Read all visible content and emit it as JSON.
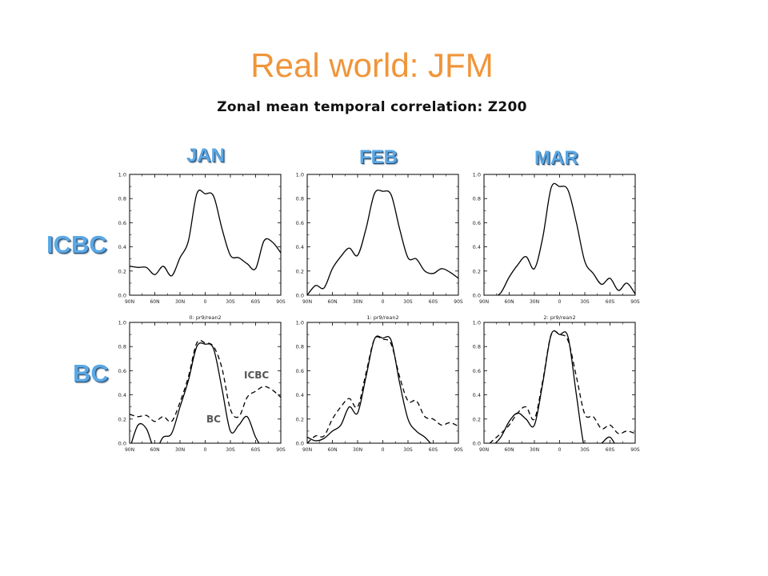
{
  "title": "Real world: JFM",
  "subtitle": "Zonal mean temporal correlation: Z200",
  "columns": [
    "JAN",
    "FEB",
    "MAR"
  ],
  "rows": [
    "ICBC",
    "BC"
  ],
  "annotations": {
    "icbc": "ICBC",
    "bc": "BC"
  },
  "colors": {
    "title": "#f0953a",
    "labels": "#5aa8e6",
    "line": "#000000"
  },
  "chart_data": {
    "type": "line",
    "x_ticks": [
      "90N",
      "60N",
      "30N",
      "0",
      "30S",
      "60S",
      "90S"
    ],
    "y_ticks": [
      "0.0",
      "0.2",
      "0.4",
      "0.6",
      "0.8",
      "1.0"
    ],
    "xlim": [
      -90,
      90
    ],
    "ylim": [
      0,
      1
    ],
    "x": [
      -90,
      -80,
      -70,
      -60,
      -50,
      -40,
      -30,
      -20,
      -10,
      0,
      10,
      20,
      30,
      40,
      50,
      60,
      70,
      80,
      90
    ],
    "panels": [
      {
        "row": "ICBC",
        "col": "JAN",
        "label": "",
        "series": [
          {
            "style": "solid",
            "values": [
              0.24,
              0.23,
              0.23,
              0.17,
              0.24,
              0.16,
              0.31,
              0.45,
              0.84,
              0.84,
              0.82,
              0.55,
              0.33,
              0.31,
              0.26,
              0.22,
              0.45,
              0.44,
              0.35
            ]
          }
        ]
      },
      {
        "row": "ICBC",
        "col": "FEB",
        "label": "",
        "series": [
          {
            "style": "solid",
            "values": [
              0.0,
              0.08,
              0.06,
              0.22,
              0.32,
              0.39,
              0.33,
              0.55,
              0.84,
              0.86,
              0.83,
              0.55,
              0.31,
              0.3,
              0.2,
              0.18,
              0.22,
              0.19,
              0.14
            ]
          }
        ]
      },
      {
        "row": "ICBC",
        "col": "MAR",
        "label": "",
        "series": [
          {
            "style": "solid",
            "values": [
              -0.05,
              -0.02,
              0.02,
              0.15,
              0.25,
              0.32,
              0.22,
              0.48,
              0.89,
              0.9,
              0.87,
              0.6,
              0.28,
              0.18,
              0.09,
              0.14,
              0.04,
              0.1,
              0.01
            ]
          }
        ]
      },
      {
        "row": "BC",
        "col": "JAN",
        "label": "0: pr9/rean2",
        "series": [
          {
            "style": "dashed",
            "values": [
              0.24,
              0.22,
              0.23,
              0.18,
              0.22,
              0.18,
              0.34,
              0.55,
              0.83,
              0.83,
              0.8,
              0.62,
              0.28,
              0.22,
              0.38,
              0.43,
              0.47,
              0.44,
              0.38
            ]
          },
          {
            "style": "solid",
            "values": [
              -0.05,
              0.15,
              0.12,
              -0.05,
              0.05,
              0.08,
              0.3,
              0.52,
              0.8,
              0.82,
              0.78,
              0.45,
              0.1,
              0.15,
              0.22,
              0.05,
              -0.05,
              -0.05,
              -0.05
            ]
          }
        ]
      },
      {
        "row": "BC",
        "col": "FEB",
        "label": "1: pr9/rean2",
        "series": [
          {
            "style": "dashed",
            "values": [
              0.0,
              0.06,
              0.06,
              0.2,
              0.3,
              0.37,
              0.3,
              0.58,
              0.86,
              0.86,
              0.82,
              0.55,
              0.35,
              0.35,
              0.22,
              0.2,
              0.15,
              0.17,
              0.14
            ]
          },
          {
            "style": "solid",
            "values": [
              0.05,
              0.02,
              0.04,
              0.1,
              0.15,
              0.3,
              0.25,
              0.55,
              0.86,
              0.87,
              0.85,
              0.5,
              0.2,
              0.1,
              0.05,
              -0.02,
              -0.05,
              -0.05,
              -0.05
            ]
          }
        ]
      },
      {
        "row": "BC",
        "col": "MAR",
        "label": "2: pr9/rean2",
        "series": [
          {
            "style": "dashed",
            "values": [
              -0.05,
              0.02,
              0.08,
              0.15,
              0.25,
              0.3,
              0.2,
              0.52,
              0.9,
              0.9,
              0.85,
              0.55,
              0.24,
              0.22,
              0.12,
              0.15,
              0.08,
              0.1,
              0.08
            ]
          },
          {
            "style": "solid",
            "values": [
              -0.05,
              -0.02,
              0.05,
              0.18,
              0.25,
              0.2,
              0.15,
              0.5,
              0.9,
              0.9,
              0.88,
              0.4,
              -0.05,
              -0.05,
              0.0,
              0.05,
              -0.05,
              -0.05,
              -0.05
            ]
          }
        ]
      }
    ]
  }
}
